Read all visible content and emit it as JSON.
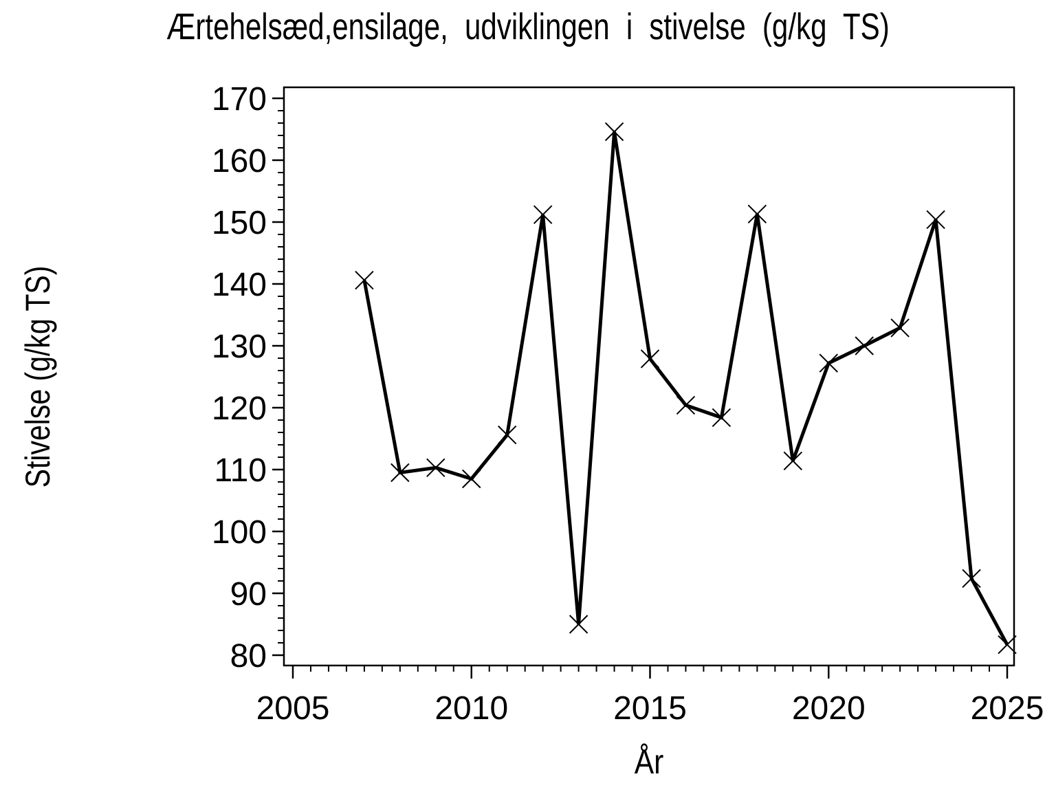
{
  "title": "Ærtehelsæd,ensilage, udviklingen i stivelse (g/kg TS)",
  "chart_data": {
    "type": "line",
    "title": "Ærtehelsæd,ensilage, udviklingen i stivelse (g/kg TS)",
    "xlabel": "År",
    "ylabel": "Stivelse  (g/kg  TS)",
    "x": [
      2007,
      2008,
      2009,
      2010,
      2011,
      2012,
      2013,
      2014,
      2015,
      2016,
      2017,
      2018,
      2019,
      2020,
      2021,
      2022,
      2023,
      2024,
      2025
    ],
    "y": [
      140.6,
      109.5,
      110.3,
      108.5,
      115.6,
      151.2,
      85.0,
      164.6,
      127.9,
      120.4,
      118.4,
      151.3,
      111.4,
      127.2,
      130.0,
      132.9,
      150.4,
      92.4,
      81.7
    ],
    "xlim": [
      2005,
      2025
    ],
    "ylim": [
      80,
      170
    ],
    "x_ticks": [
      2005,
      2010,
      2015,
      2020,
      2025
    ],
    "y_ticks": [
      80,
      90,
      100,
      110,
      120,
      130,
      140,
      150,
      160,
      170
    ],
    "x_minor_step": 0.5,
    "y_minor_step": 2,
    "marker": "x",
    "line_color": "#000000",
    "background_color": "#ffffff",
    "grid": false,
    "legend": false
  }
}
